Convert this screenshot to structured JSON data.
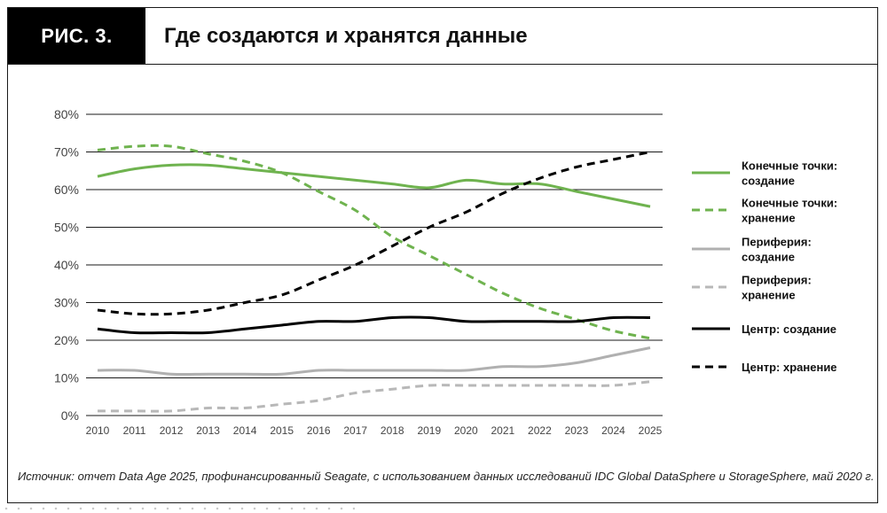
{
  "figure": {
    "label": "РИС. 3.",
    "title": "Где создаются и хранятся данные",
    "source": "Источник: отчет Data Age 2025, профинансированный Seagate, с использованием данных исследований IDC Global DataSphere и StorageSphere, май 2020 г."
  },
  "chart_data": {
    "type": "line",
    "x": [
      2010,
      2011,
      2012,
      2013,
      2014,
      2015,
      2016,
      2017,
      2018,
      2019,
      2020,
      2021,
      2022,
      2023,
      2024,
      2025
    ],
    "ylim": [
      0,
      80
    ],
    "yticks": [
      0,
      10,
      20,
      30,
      40,
      50,
      60,
      70,
      80
    ],
    "ytick_labels": [
      "0%",
      "10%",
      "20%",
      "30%",
      "40%",
      "50%",
      "60%",
      "70%",
      "80%"
    ],
    "grid": "horizontal",
    "legend_position": "right",
    "series": [
      {
        "name_lines": [
          "Конечные точки:",
          "создание"
        ],
        "color": "#6fb34f",
        "dash": false,
        "values": [
          63.5,
          65.5,
          66.5,
          66.5,
          65.5,
          64.5,
          63.5,
          62.5,
          61.5,
          60.5,
          62.5,
          61.5,
          61.5,
          59.5,
          57.5,
          55.5
        ]
      },
      {
        "name_lines": [
          "Конечные точки:",
          "хранение"
        ],
        "color": "#6fb34f",
        "dash": true,
        "values": [
          70.5,
          71.5,
          71.5,
          69.5,
          67.5,
          64.5,
          59.5,
          54.5,
          47.5,
          42.5,
          37.5,
          32.5,
          28.5,
          25.5,
          22.5,
          20.5
        ]
      },
      {
        "name_lines": [
          "Периферия:",
          "создание"
        ],
        "color": "#b0b0b0",
        "dash": false,
        "values": [
          12,
          12,
          11,
          11,
          11,
          11,
          12,
          12,
          12,
          12,
          12,
          13,
          13,
          14,
          16,
          18
        ]
      },
      {
        "name_lines": [
          "Периферия:",
          "хранение"
        ],
        "color": "#b8b8b8",
        "dash": true,
        "values": [
          1.2,
          1.2,
          1.2,
          2,
          2,
          3,
          4,
          6,
          7,
          8,
          8,
          8,
          8,
          8,
          8,
          9
        ]
      },
      {
        "name_lines": [
          "Центр: создание"
        ],
        "color": "#000000",
        "dash": false,
        "values": [
          23,
          22,
          22,
          22,
          23,
          24,
          25,
          25,
          26,
          26,
          25,
          25,
          25,
          25,
          26,
          26
        ]
      },
      {
        "name_lines": [
          "Центр: хранение"
        ],
        "color": "#000000",
        "dash": true,
        "values": [
          28,
          27,
          27,
          28,
          30,
          32,
          36,
          40,
          45,
          50,
          54,
          59,
          63,
          66,
          68,
          70
        ]
      }
    ]
  }
}
